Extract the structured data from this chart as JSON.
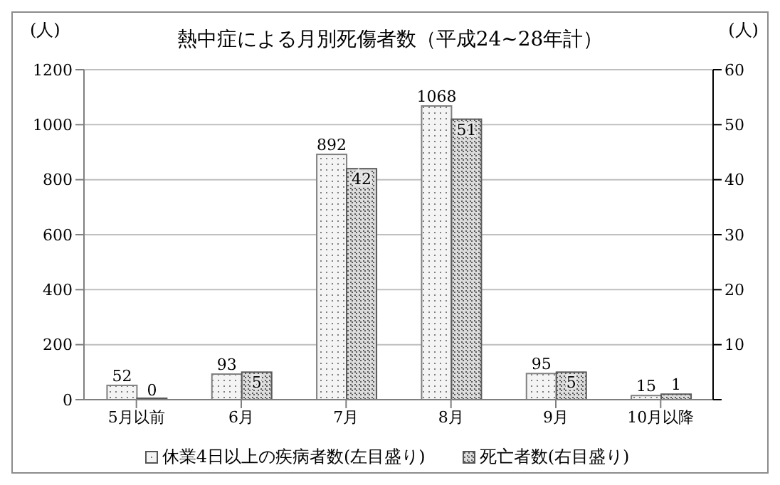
{
  "chart_data": {
    "type": "bar",
    "title": "熱中症による月別死傷者数（平成24~28年計）",
    "ylabel": "(人)",
    "y2label": "(人)",
    "categories": [
      "5月以前",
      "6月",
      "7月",
      "8月",
      "9月",
      "10月以降"
    ],
    "series": [
      {
        "name": "休業4日以上の疾病者数(左目盛り)",
        "color": "#808080",
        "values": [
          52,
          93,
          892,
          1068,
          95,
          15
        ]
      },
      {
        "name": "死亡者数(右目盛り)",
        "color": "#5a5a5a",
        "values": [
          0,
          5,
          42,
          51,
          5,
          1
        ],
        "axis": "y2"
      }
    ],
    "ylim": [
      0,
      1200
    ],
    "yticks": [
      0,
      200,
      400,
      600,
      800,
      1000,
      1200
    ],
    "y2lim": [
      0,
      60
    ],
    "y2ticks": [
      {
        "value": 0,
        "label": null
      },
      10,
      20,
      30,
      40,
      50,
      60
    ],
    "grid": "y",
    "legend": "bottom",
    "data_labels": true
  }
}
